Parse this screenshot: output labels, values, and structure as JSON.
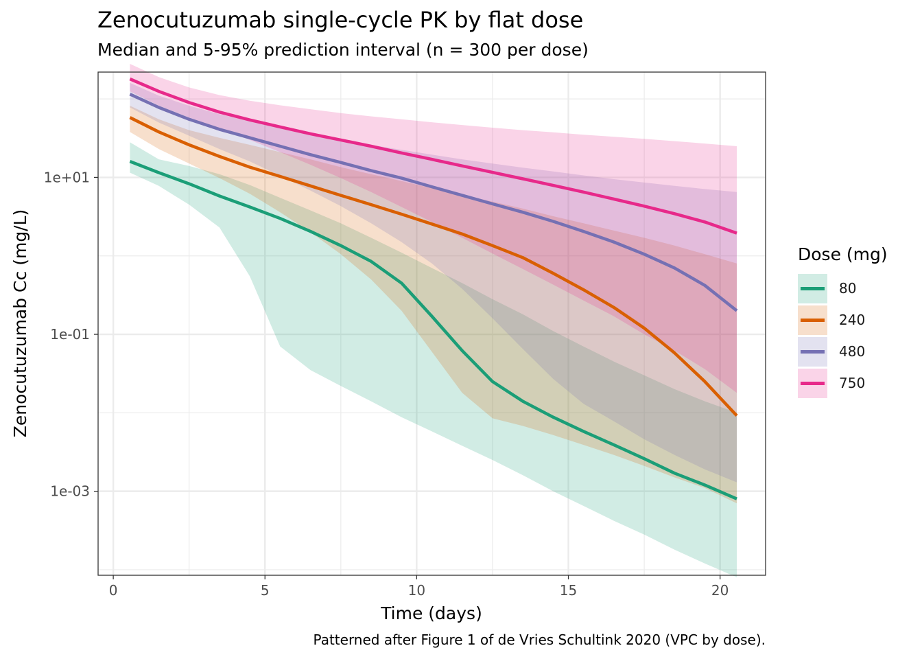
{
  "title": "Zenocutuzumab single-cycle PK by flat dose",
  "subtitle": "Median and 5-95% prediction interval (n = 300 per dose)",
  "caption": "Patterned after Figure 1 of de Vries Schultink 2020 (VPC by dose).",
  "legend": {
    "title": "Dose (mg)",
    "items": [
      "80",
      "240",
      "480",
      "750"
    ]
  },
  "chart_data": {
    "type": "line",
    "title": "Zenocutuzumab single-cycle PK by flat dose",
    "xlabel": "Time (days)",
    "ylabel": "Zenocutuzumab Cc (mg/L)",
    "x_scale": "linear",
    "y_scale": "log10",
    "xlim": [
      -0.5,
      21.5
    ],
    "ylim": [
      8.5e-05,
      220
    ],
    "x_ticks": [
      0,
      5,
      10,
      15,
      20
    ],
    "x_tick_labels": [
      "0",
      "5",
      "10",
      "15",
      "20"
    ],
    "y_ticks": [
      0.001,
      0.1,
      10
    ],
    "y_tick_labels": [
      "1e-03",
      "1e-01",
      "1e+01"
    ],
    "grid": true,
    "legend_position": "right",
    "series": [
      {
        "name": "80",
        "color": "#1b9e77",
        "x": [
          0.55,
          1.5,
          2.5,
          3.5,
          4.5,
          5.5,
          6.5,
          7.5,
          8.5,
          9.5,
          10.5,
          11.5,
          12.5,
          13.5,
          14.5,
          15.5,
          16.5,
          17.5,
          18.5,
          19.5,
          20.55
        ],
        "median": [
          16,
          11.5,
          8.3,
          5.8,
          4.2,
          3.0,
          2.05,
          1.35,
          0.85,
          0.45,
          0.17,
          0.062,
          0.025,
          0.014,
          0.0088,
          0.0058,
          0.0039,
          0.0026,
          0.0017,
          0.0012,
          0.0008
        ],
        "lower": [
          11.5,
          7.8,
          4.5,
          2.3,
          0.55,
          0.07,
          0.035,
          0.022,
          0.014,
          0.0088,
          0.0058,
          0.0038,
          0.0025,
          0.0016,
          0.001,
          0.00065,
          0.00042,
          0.00028,
          0.00018,
          0.00012,
          8e-05
        ],
        "upper": [
          28,
          17,
          14,
          11,
          8,
          5.5,
          3.8,
          2.6,
          1.7,
          1.1,
          0.7,
          0.45,
          0.28,
          0.18,
          0.11,
          0.07,
          0.045,
          0.03,
          0.02,
          0.014,
          0.01
        ]
      },
      {
        "name": "240",
        "color": "#d95f02",
        "x": [
          0.55,
          1.5,
          2.5,
          3.5,
          4.5,
          5.5,
          6.5,
          7.5,
          8.5,
          9.5,
          10.5,
          11.5,
          12.5,
          13.5,
          14.5,
          15.5,
          16.5,
          17.5,
          18.5,
          19.5,
          20.55
        ],
        "median": [
          58,
          38,
          26,
          18.5,
          13.5,
          10.3,
          7.8,
          5.9,
          4.5,
          3.4,
          2.55,
          1.9,
          1.35,
          0.95,
          0.6,
          0.37,
          0.22,
          0.12,
          0.058,
          0.025,
          0.0092
        ],
        "lower": [
          38,
          23,
          15,
          9.8,
          6.2,
          3.6,
          2.0,
          1.05,
          0.5,
          0.2,
          0.06,
          0.018,
          0.0085,
          0.0068,
          0.0052,
          0.0039,
          0.0029,
          0.0021,
          0.0015,
          0.0011,
          0.0007
        ],
        "upper": [
          82,
          55,
          40,
          32,
          26,
          21,
          17,
          13.5,
          11,
          9,
          7.3,
          6.0,
          4.9,
          4.0,
          3.2,
          2.6,
          2.1,
          1.7,
          1.35,
          1.05,
          0.8
        ]
      },
      {
        "name": "480",
        "color": "#7570b3",
        "x": [
          0.55,
          1.5,
          2.5,
          3.5,
          4.5,
          5.5,
          6.5,
          7.5,
          8.5,
          9.5,
          10.5,
          11.5,
          12.5,
          13.5,
          14.5,
          15.5,
          16.5,
          17.5,
          18.5,
          19.5,
          20.55
        ],
        "median": [
          115,
          78,
          55,
          41,
          32,
          25,
          19.5,
          15.5,
          12.2,
          9.8,
          7.6,
          5.9,
          4.6,
          3.6,
          2.75,
          2.05,
          1.5,
          1.05,
          0.7,
          0.42,
          0.2
        ],
        "lower": [
          78,
          50,
          34,
          23,
          16,
          10.5,
          6.8,
          4.3,
          2.6,
          1.5,
          0.8,
          0.38,
          0.16,
          0.065,
          0.027,
          0.013,
          0.0078,
          0.0046,
          0.0029,
          0.0019,
          0.0013
        ],
        "upper": [
          160,
          110,
          82,
          64,
          52,
          43,
          36,
          30,
          26,
          22.5,
          19.5,
          17,
          15,
          13.3,
          11.9,
          10.6,
          9.5,
          8.6,
          7.8,
          7.1,
          6.5
        ]
      },
      {
        "name": "750",
        "color": "#e7298a",
        "x": [
          0.55,
          1.5,
          2.5,
          3.5,
          4.5,
          5.5,
          6.5,
          7.5,
          8.5,
          9.5,
          10.5,
          11.5,
          12.5,
          13.5,
          14.5,
          15.5,
          16.5,
          17.5,
          18.5,
          19.5,
          20.55
        ],
        "median": [
          180,
          125,
          90,
          68,
          54,
          44,
          36,
          30,
          25,
          20.5,
          17,
          14,
          11.6,
          9.6,
          7.9,
          6.5,
          5.3,
          4.3,
          3.45,
          2.7,
          1.95
        ],
        "lower": [
          125,
          82,
          58,
          42,
          30,
          21,
          14.5,
          9.8,
          6.5,
          4.2,
          2.7,
          1.7,
          1.07,
          0.68,
          0.43,
          0.27,
          0.17,
          0.1,
          0.062,
          0.036,
          0.018
        ],
        "upper": [
          280,
          190,
          140,
          112,
          95,
          83,
          74,
          66,
          60,
          55,
          50.5,
          46.5,
          43,
          40,
          37.5,
          35,
          33,
          31,
          29,
          27,
          25
        ]
      }
    ]
  }
}
